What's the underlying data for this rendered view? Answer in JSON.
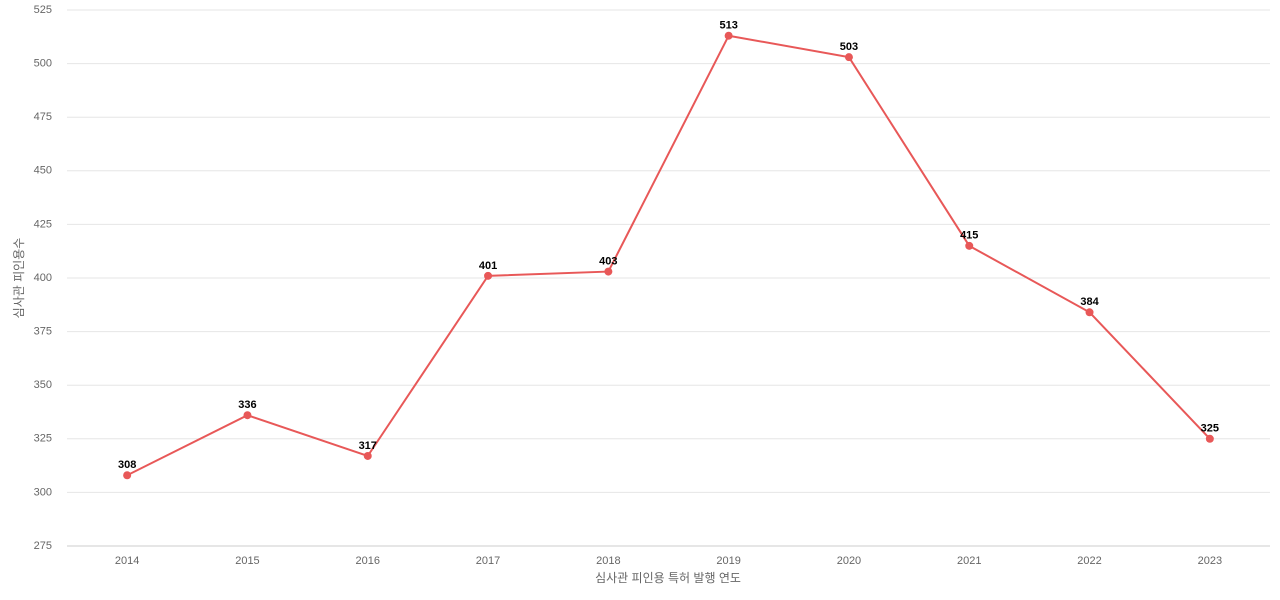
{
  "chart_data": {
    "type": "line",
    "x_label": "심사관 피인용 특허 발행 연도",
    "y_label": "심사관 피인용수",
    "categories": [
      "2014",
      "2015",
      "2016",
      "2017",
      "2018",
      "2019",
      "2020",
      "2021",
      "2022",
      "2023"
    ],
    "values": [
      308,
      336,
      317,
      401,
      403,
      513,
      503,
      415,
      384,
      325
    ],
    "color": "#e85858",
    "ylim": [
      275,
      525
    ],
    "yticks": [
      275,
      300,
      325,
      350,
      375,
      400,
      425,
      450,
      475,
      500,
      525
    ],
    "grid": true
  }
}
